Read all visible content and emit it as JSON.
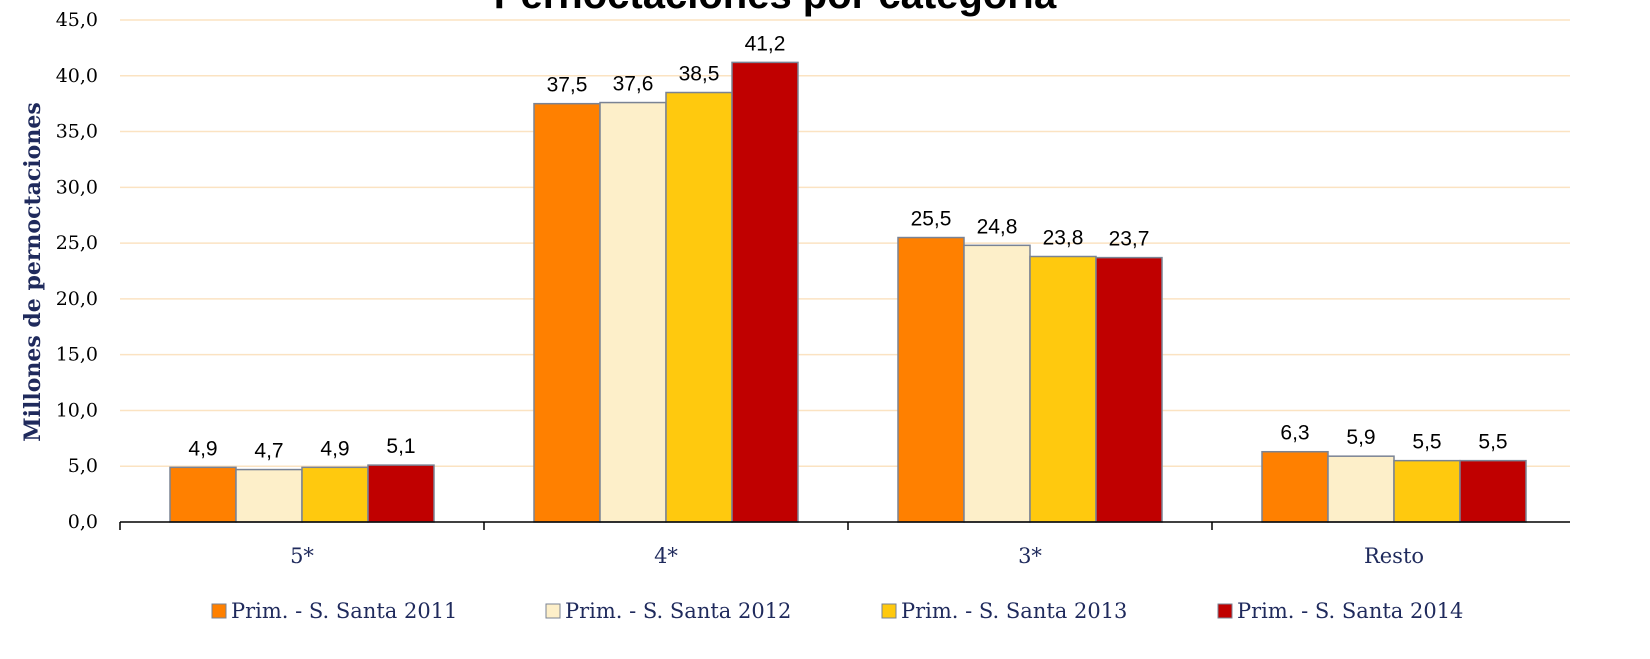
{
  "chart_data": {
    "type": "bar",
    "title": "Pernoctaciones por categoría",
    "ylabel": "Millones de pernoctaciones",
    "xlabel": "",
    "ylim": [
      0,
      45
    ],
    "ytick_step": 5,
    "ytick_labels": [
      "0,0",
      "5,0",
      "10,0",
      "15,0",
      "20,0",
      "25,0",
      "30,0",
      "35,0",
      "40,0",
      "45,0"
    ],
    "grid": true,
    "legend_position": "bottom",
    "categories": [
      "5*",
      "4*",
      "3*",
      "Resto"
    ],
    "series": [
      {
        "name": "Prim. - S. Santa 2011",
        "color": "#ff8000",
        "values": [
          4.9,
          37.5,
          25.5,
          6.3
        ],
        "labels": [
          "4,9",
          "37,5",
          "25,5",
          "6,3"
        ]
      },
      {
        "name": "Prim. - S. Santa 2012",
        "color": "#fdefc9",
        "values": [
          4.7,
          37.6,
          24.8,
          5.9
        ],
        "labels": [
          "4,7",
          "37,6",
          "24,8",
          "5,9"
        ]
      },
      {
        "name": "Prim. - S. Santa 2013",
        "color": "#ffc90e",
        "values": [
          4.9,
          38.5,
          23.8,
          5.5
        ],
        "labels": [
          "4,9",
          "38,5",
          "23,8",
          "5,5"
        ]
      },
      {
        "name": "Prim. - S. Santa 2014",
        "color": "#c00000",
        "values": [
          5.1,
          41.2,
          23.7,
          5.5
        ],
        "labels": [
          "5,1",
          "41,2",
          "23,7",
          "5,5"
        ]
      }
    ]
  }
}
